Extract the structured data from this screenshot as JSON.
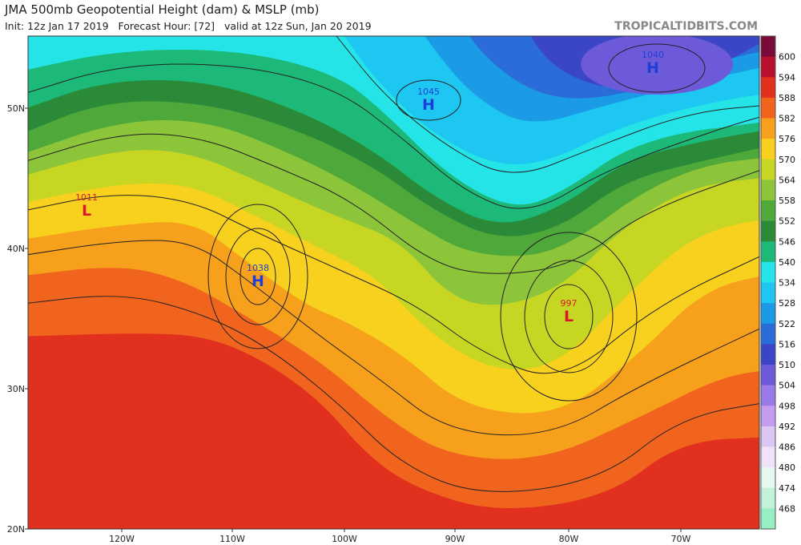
{
  "header": {
    "title": "JMA 500mb Geopotential Height (dam) & MSLP (mb)",
    "subtitle": "Init: 12z Jan 17 2019   Forecast Hour: [72]   valid at 12z Sun, Jan 20 2019",
    "credit": "TROPICALTIDBITS.COM"
  },
  "map": {
    "lat_labels": [
      "50N",
      "40N",
      "30N",
      "20N"
    ],
    "lon_labels": [
      "120W",
      "110W",
      "100W",
      "90W",
      "80W",
      "70W"
    ],
    "centers": [
      {
        "pressure": "1011",
        "letter": "L"
      },
      {
        "pressure": "1038",
        "letter": "H"
      },
      {
        "pressure": "1045",
        "letter": "H"
      },
      {
        "pressure": "1040",
        "letter": "H"
      },
      {
        "pressure": "997",
        "letter": "L"
      }
    ]
  },
  "colorbar": {
    "levels": [
      600,
      594,
      588,
      582,
      576,
      570,
      564,
      558,
      552,
      546,
      540,
      534,
      528,
      522,
      516,
      510,
      504,
      498,
      492,
      486,
      480,
      474,
      468
    ],
    "colors": [
      "#7a0a38",
      "#b8102e",
      "#e2301f",
      "#f0641e",
      "#f6a01c",
      "#f8d01e",
      "#c6d623",
      "#8cc43a",
      "#4ea83a",
      "#2a8a38",
      "#1cb978",
      "#25e4e8",
      "#1ec6f2",
      "#1b9ae6",
      "#2a6cd8",
      "#3a46c6",
      "#6c5ad8",
      "#9a7ae6",
      "#c49cf0",
      "#dcc6f4",
      "#f0e2f8",
      "#e6f8ee",
      "#c2f2da",
      "#98eec2"
    ]
  }
}
